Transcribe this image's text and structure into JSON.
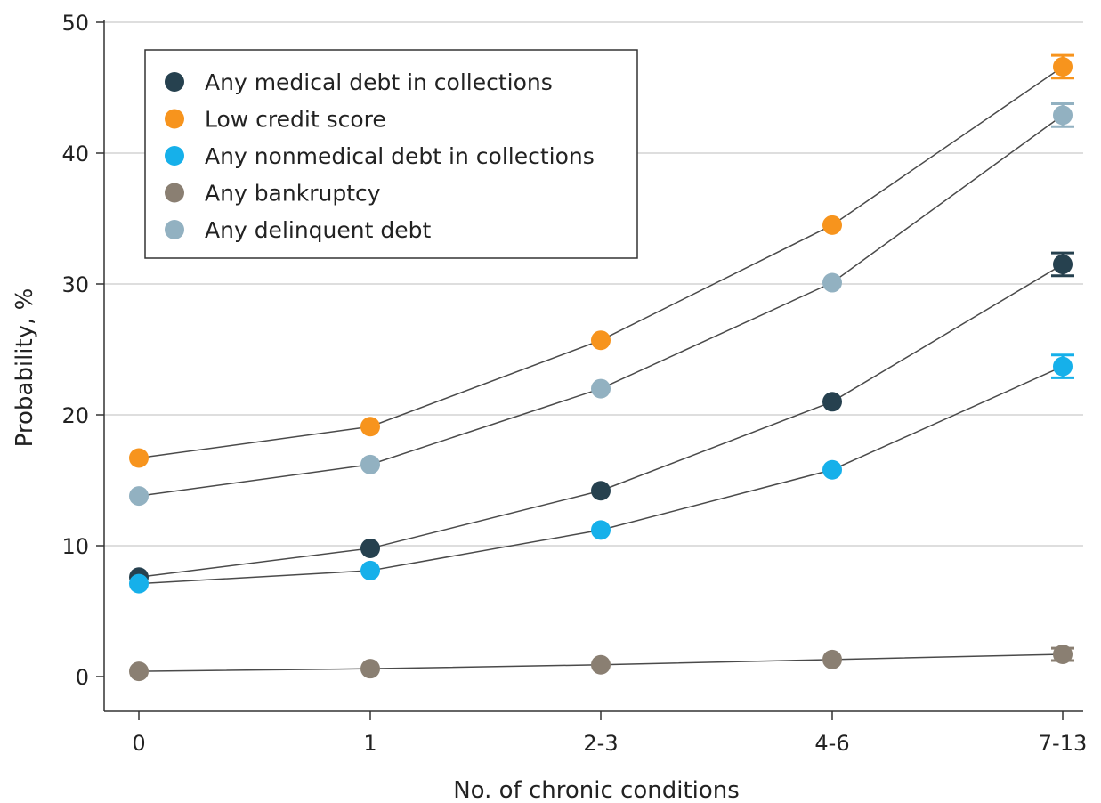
{
  "chart_data": {
    "type": "line",
    "title": "",
    "xlabel": "No. of chronic conditions",
    "ylabel": "Probability, %",
    "categories": [
      "0",
      "1",
      "2-3",
      "4-6",
      "7-13"
    ],
    "ylim": [
      0,
      50
    ],
    "yticks": [
      "0",
      "10",
      "20",
      "30",
      "40",
      "50"
    ],
    "grid": "horizontal",
    "legend_position": "top-left",
    "series": [
      {
        "name": "Any medical debt in collections",
        "color": "#26414f",
        "values": [
          7.6,
          9.8,
          14.2,
          21.0,
          31.5
        ],
        "error": [
          0.2,
          0.2,
          0.3,
          0.3,
          0.6
        ]
      },
      {
        "name": "Low credit score",
        "color": "#f7941d",
        "values": [
          16.7,
          19.1,
          25.7,
          34.5,
          46.6
        ],
        "error": [
          0.2,
          0.2,
          0.3,
          0.3,
          0.6
        ]
      },
      {
        "name": "Any nonmedical debt in collections",
        "color": "#16b0ea",
        "values": [
          7.1,
          8.1,
          11.2,
          15.8,
          23.7
        ],
        "error": [
          0.2,
          0.2,
          0.3,
          0.3,
          0.6
        ]
      },
      {
        "name": "Any bankruptcy",
        "color": "#8a7f72",
        "values": [
          0.4,
          0.6,
          0.9,
          1.3,
          1.7
        ],
        "error": [
          0.1,
          0.1,
          0.1,
          0.1,
          0.2
        ]
      },
      {
        "name": "Any delinquent debt",
        "color": "#92b1c1",
        "values": [
          13.8,
          16.2,
          22.0,
          30.1,
          42.9
        ],
        "error": [
          0.2,
          0.2,
          0.3,
          0.3,
          0.6
        ]
      }
    ]
  }
}
